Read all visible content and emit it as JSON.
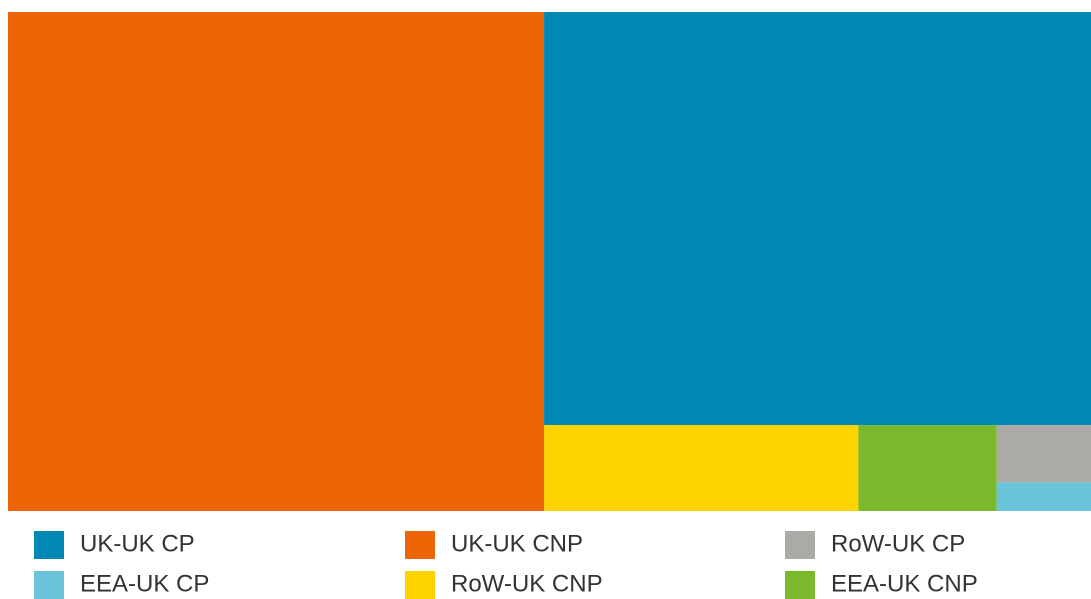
{
  "chart_data": {
    "type": "treemap",
    "categories": [
      "UK-UK CP",
      "UK-UK CNP",
      "RoW-UK CP",
      "EEA-UK CP",
      "RoW-UK CNP",
      "EEA-UK CNP"
    ],
    "values": [
      41.8,
      49.5,
      1.0,
      0.5,
      5.0,
      2.2
    ],
    "colors": [
      "#0088b4",
      "#ec6607",
      "#acaaa6",
      "#6ac4d9",
      "#fed300",
      "#7ab92e"
    ],
    "legend": "bottom"
  }
}
